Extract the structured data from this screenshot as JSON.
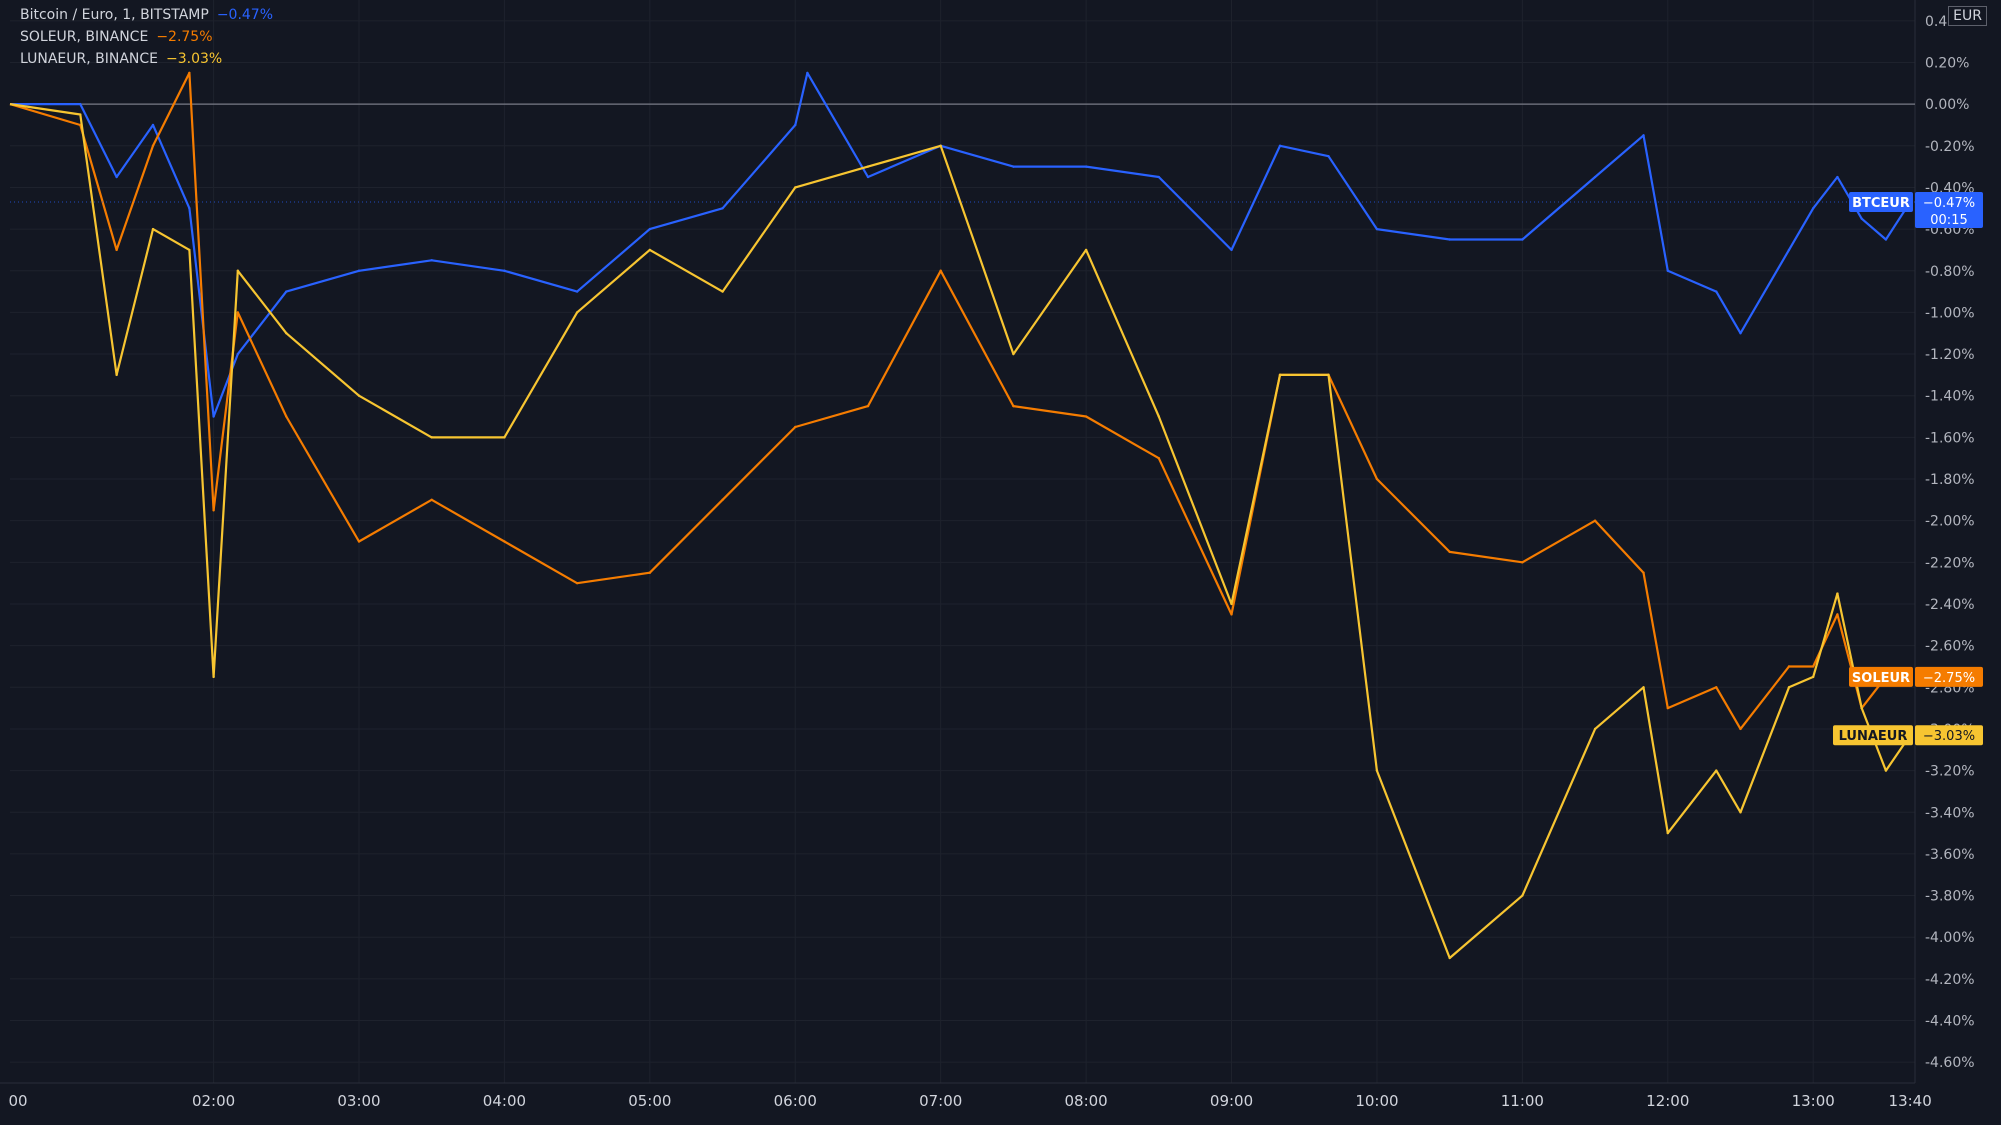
{
  "chart_data": {
    "type": "line",
    "unit": "EUR",
    "y_unit": "percent change",
    "ylim": [
      -4.7,
      0.5
    ],
    "y_ticks": [
      "0.40%",
      "0.20%",
      "0.00%",
      "-0.20%",
      "-0.40%",
      "-0.60%",
      "-0.80%",
      "-1.00%",
      "-1.20%",
      "-1.40%",
      "-1.60%",
      "-1.80%",
      "-2.00%",
      "-2.20%",
      "-2.40%",
      "-2.60%",
      "-2.80%",
      "-3.00%",
      "-3.20%",
      "-3.40%",
      "-3.60%",
      "-3.80%",
      "-4.00%",
      "-4.20%",
      "-4.40%",
      "-4.60%"
    ],
    "x_ticks": [
      "00",
      "02:00",
      "03:00",
      "04:00",
      "05:00",
      "06:00",
      "07:00",
      "08:00",
      "09:00",
      "10:00",
      "11:00",
      "12:00",
      "13:00",
      "13:40"
    ],
    "grid": true,
    "series": [
      {
        "name": "Bitcoin / Euro, 1, BITSTAMP",
        "tag": "BTCEUR",
        "last": "−0.47%",
        "countdown": "00:15",
        "color": "#2962ff",
        "x": [
          "01:05",
          "01:20",
          "01:35",
          "01:50",
          "02:00",
          "02:10",
          "02:30",
          "03:00",
          "03:30",
          "04:00",
          "04:30",
          "05:00",
          "05:30",
          "06:00",
          "06:05",
          "06:30",
          "07:00",
          "07:30",
          "08:00",
          "08:30",
          "09:00",
          "09:20",
          "09:40",
          "10:00",
          "10:30",
          "11:00",
          "11:30",
          "11:50",
          "12:00",
          "12:20",
          "12:30",
          "12:50",
          "13:00",
          "13:10",
          "13:20",
          "13:30",
          "13:40"
        ],
        "values": [
          0.0,
          -0.35,
          -0.1,
          -0.5,
          -1.5,
          -1.2,
          -0.9,
          -0.8,
          -0.75,
          -0.8,
          -0.9,
          -0.6,
          -0.5,
          -0.1,
          0.15,
          -0.35,
          -0.2,
          -0.3,
          -0.3,
          -0.35,
          -0.7,
          -0.2,
          -0.25,
          -0.6,
          -0.65,
          -0.65,
          -0.35,
          -0.15,
          -0.8,
          -0.9,
          -1.1,
          -0.7,
          -0.5,
          -0.35,
          -0.55,
          -0.65,
          -0.47
        ]
      },
      {
        "name": "SOLEUR, BINANCE",
        "tag": "SOLEUR",
        "last": "−2.75%",
        "color": "#f57c00",
        "x": [
          "01:05",
          "01:20",
          "01:35",
          "01:50",
          "02:00",
          "02:10",
          "02:30",
          "03:00",
          "03:30",
          "04:00",
          "04:30",
          "05:00",
          "05:30",
          "06:00",
          "06:30",
          "07:00",
          "07:30",
          "08:00",
          "08:30",
          "09:00",
          "09:20",
          "09:40",
          "10:00",
          "10:30",
          "11:00",
          "11:30",
          "11:50",
          "12:00",
          "12:20",
          "12:30",
          "12:50",
          "13:00",
          "13:10",
          "13:20",
          "13:30",
          "13:40"
        ],
        "values": [
          -0.1,
          -0.7,
          -0.2,
          0.15,
          -1.95,
          -1.0,
          -1.5,
          -2.1,
          -1.9,
          -2.1,
          -2.3,
          -2.25,
          -1.9,
          -1.55,
          -1.45,
          -0.8,
          -1.45,
          -1.5,
          -1.7,
          -2.45,
          -1.3,
          -1.3,
          -1.8,
          -2.15,
          -2.2,
          -2.0,
          -2.25,
          -2.9,
          -2.8,
          -3.0,
          -2.7,
          -2.7,
          -2.45,
          -2.9,
          -2.75,
          -2.75
        ]
      },
      {
        "name": "LUNAEUR, BINANCE",
        "tag": "LUNAEUR",
        "last": "−3.03%",
        "color": "#f7c531",
        "x": [
          "01:05",
          "01:20",
          "01:35",
          "01:50",
          "02:00",
          "02:10",
          "02:30",
          "03:00",
          "03:30",
          "04:00",
          "04:30",
          "05:00",
          "05:30",
          "06:00",
          "06:30",
          "07:00",
          "07:30",
          "08:00",
          "08:30",
          "09:00",
          "09:20",
          "09:40",
          "10:00",
          "10:30",
          "11:00",
          "11:30",
          "11:50",
          "12:00",
          "12:20",
          "12:30",
          "12:50",
          "13:00",
          "13:10",
          "13:20",
          "13:30",
          "13:40"
        ],
        "values": [
          -0.05,
          -1.3,
          -0.6,
          -0.7,
          -2.75,
          -0.8,
          -1.1,
          -1.4,
          -1.6,
          -1.6,
          -1.0,
          -0.7,
          -0.9,
          -0.4,
          -0.3,
          -0.2,
          -1.2,
          -0.7,
          -1.5,
          -2.4,
          -1.3,
          -1.3,
          -3.2,
          -4.1,
          -3.8,
          -3.0,
          -2.8,
          -3.5,
          -3.2,
          -3.4,
          -2.8,
          -2.75,
          -2.35,
          -2.9,
          -3.2,
          -3.03
        ]
      }
    ]
  }
}
